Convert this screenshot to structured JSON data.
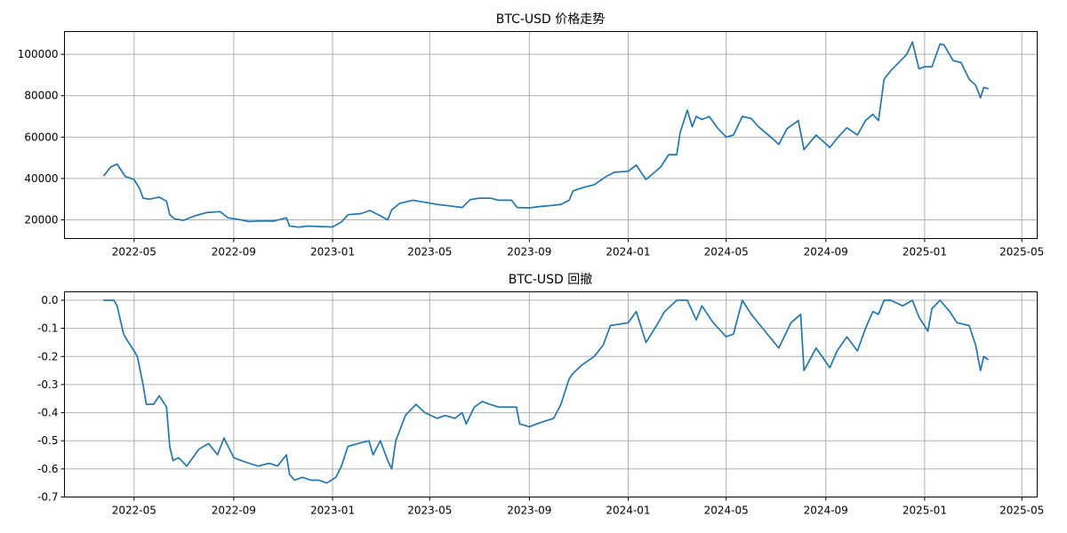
{
  "chart_data": [
    {
      "type": "line",
      "title": "BTC-USD 价格走势",
      "xlabel": "",
      "ylabel": "",
      "ylim": [
        11000,
        111000
      ],
      "yticks": [
        20000,
        40000,
        60000,
        80000,
        100000
      ],
      "ytick_labels": [
        "20000",
        "40000",
        "60000",
        "80000",
        "100000"
      ],
      "xlim": [
        "2022-02-04",
        "2025-05-20"
      ],
      "xticks": [
        "2022-05-01",
        "2022-09-01",
        "2023-01-01",
        "2023-05-01",
        "2023-09-01",
        "2024-01-01",
        "2024-05-01",
        "2024-09-01",
        "2025-01-01",
        "2025-05-01"
      ],
      "xtick_labels": [
        "2022-05",
        "2022-09",
        "2023-01",
        "2023-05",
        "2023-09",
        "2024-01",
        "2024-05",
        "2024-09",
        "2025-01",
        "2025-05"
      ],
      "grid": true,
      "color": "#1f77b4",
      "series": [
        {
          "x": [
            "2022-03-25",
            "2022-04-02",
            "2022-04-10",
            "2022-04-20",
            "2022-05-01",
            "2022-05-08",
            "2022-05-12",
            "2022-05-20",
            "2022-06-01",
            "2022-06-10",
            "2022-06-14",
            "2022-06-20",
            "2022-07-01",
            "2022-07-15",
            "2022-07-29",
            "2022-08-15",
            "2022-08-25",
            "2022-09-10",
            "2022-09-20",
            "2022-10-05",
            "2022-10-20",
            "2022-11-05",
            "2022-11-09",
            "2022-11-20",
            "2022-12-01",
            "2022-12-15",
            "2023-01-01",
            "2023-01-12",
            "2023-01-20",
            "2023-02-05",
            "2023-02-16",
            "2023-03-01",
            "2023-03-10",
            "2023-03-15",
            "2023-03-25",
            "2023-04-10",
            "2023-04-25",
            "2023-05-10",
            "2023-05-25",
            "2023-06-10",
            "2023-06-20",
            "2023-07-01",
            "2023-07-15",
            "2023-07-25",
            "2023-08-10",
            "2023-08-17",
            "2023-09-01",
            "2023-09-15",
            "2023-09-30",
            "2023-10-10",
            "2023-10-20",
            "2023-10-25",
            "2023-11-05",
            "2023-11-20",
            "2023-12-05",
            "2023-12-15",
            "2024-01-01",
            "2024-01-11",
            "2024-01-23",
            "2024-02-01",
            "2024-02-10",
            "2024-02-20",
            "2024-03-01",
            "2024-03-05",
            "2024-03-14",
            "2024-03-20",
            "2024-03-25",
            "2024-04-01",
            "2024-04-10",
            "2024-04-20",
            "2024-05-01",
            "2024-05-10",
            "2024-05-21",
            "2024-06-01",
            "2024-06-10",
            "2024-06-25",
            "2024-07-05",
            "2024-07-15",
            "2024-07-29",
            "2024-08-05",
            "2024-08-20",
            "2024-09-06",
            "2024-09-15",
            "2024-09-27",
            "2024-10-10",
            "2024-10-20",
            "2024-10-29",
            "2024-11-05",
            "2024-11-12",
            "2024-11-20",
            "2024-12-05",
            "2024-12-10",
            "2024-12-17",
            "2024-12-25",
            "2025-01-01",
            "2025-01-10",
            "2025-01-20",
            "2025-01-25",
            "2025-02-05",
            "2025-02-15",
            "2025-02-25",
            "2025-03-05",
            "2025-03-11",
            "2025-03-15",
            "2025-03-20"
          ],
          "values": [
            41500,
            45500,
            47000,
            41000,
            39500,
            35000,
            30500,
            30000,
            31000,
            29000,
            22500,
            20500,
            19800,
            22000,
            23500,
            24000,
            21000,
            20000,
            19200,
            19500,
            19400,
            21000,
            17000,
            16500,
            17000,
            16800,
            16600,
            19000,
            22500,
            23000,
            24500,
            22000,
            20000,
            24800,
            28000,
            29500,
            28500,
            27500,
            26800,
            26000,
            29800,
            30500,
            30500,
            29500,
            29500,
            26000,
            25800,
            26500,
            27000,
            27500,
            29500,
            34000,
            35500,
            37000,
            41000,
            43000,
            43500,
            46500,
            39500,
            42500,
            45500,
            51500,
            51500,
            62000,
            73000,
            65000,
            70000,
            68500,
            70000,
            64500,
            60000,
            61000,
            70000,
            69000,
            65000,
            60000,
            56500,
            64000,
            68000,
            54000,
            61000,
            55000,
            59500,
            64500,
            61000,
            68000,
            71000,
            68000,
            88000,
            92000,
            98000,
            100000,
            106000,
            93000,
            94000,
            94000,
            105000,
            104500,
            97000,
            96000,
            88000,
            85000,
            79000,
            84000,
            83500
          ]
        }
      ]
    },
    {
      "type": "line",
      "title": "BTC-USD 回撤",
      "xlabel": "",
      "ylabel": "",
      "ylim": [
        -0.7,
        0.03
      ],
      "yticks": [
        -0.7,
        -0.6,
        -0.5,
        -0.4,
        -0.3,
        -0.2,
        -0.1,
        0.0
      ],
      "ytick_labels": [
        "-0.7",
        "-0.6",
        "-0.5",
        "-0.4",
        "-0.3",
        "-0.2",
        "-0.1",
        "0.0"
      ],
      "xlim": [
        "2022-02-04",
        "2025-05-20"
      ],
      "xticks": [
        "2022-05-01",
        "2022-09-01",
        "2023-01-01",
        "2023-05-01",
        "2023-09-01",
        "2024-01-01",
        "2024-05-01",
        "2024-09-01",
        "2025-01-01",
        "2025-05-01"
      ],
      "xtick_labels": [
        "2022-05",
        "2022-09",
        "2023-01",
        "2023-05",
        "2023-09",
        "2024-01",
        "2024-05",
        "2024-09",
        "2025-01",
        "2025-05"
      ],
      "grid": true,
      "color": "#1f77b4",
      "series": [
        {
          "x": [
            "2022-03-25",
            "2022-04-02",
            "2022-04-06",
            "2022-04-10",
            "2022-04-18",
            "2022-04-22",
            "2022-05-01",
            "2022-05-05",
            "2022-05-12",
            "2022-05-16",
            "2022-05-25",
            "2022-06-01",
            "2022-06-10",
            "2022-06-14",
            "2022-06-18",
            "2022-06-25",
            "2022-07-05",
            "2022-07-20",
            "2022-08-01",
            "2022-08-12",
            "2022-08-20",
            "2022-09-01",
            "2022-09-10",
            "2022-09-20",
            "2022-10-01",
            "2022-10-15",
            "2022-10-25",
            "2022-11-05",
            "2022-11-09",
            "2022-11-15",
            "2022-11-25",
            "2022-12-05",
            "2022-12-15",
            "2022-12-25",
            "2023-01-05",
            "2023-01-12",
            "2023-01-20",
            "2023-02-01",
            "2023-02-15",
            "2023-02-20",
            "2023-03-01",
            "2023-03-10",
            "2023-03-15",
            "2023-03-20",
            "2023-04-01",
            "2023-04-14",
            "2023-04-25",
            "2023-05-10",
            "2023-05-20",
            "2023-06-01",
            "2023-06-10",
            "2023-06-15",
            "2023-06-25",
            "2023-07-05",
            "2023-07-14",
            "2023-07-25",
            "2023-08-05",
            "2023-08-16",
            "2023-08-20",
            "2023-09-01",
            "2023-09-10",
            "2023-09-20",
            "2023-10-01",
            "2023-10-10",
            "2023-10-20",
            "2023-10-25",
            "2023-11-05",
            "2023-11-20",
            "2023-12-01",
            "2023-12-10",
            "2024-01-01",
            "2024-01-11",
            "2024-01-23",
            "2024-02-05",
            "2024-02-15",
            "2024-03-01",
            "2024-03-14",
            "2024-03-25",
            "2024-04-01",
            "2024-04-15",
            "2024-05-01",
            "2024-05-10",
            "2024-05-21",
            "2024-06-01",
            "2024-06-15",
            "2024-07-05",
            "2024-07-20",
            "2024-08-01",
            "2024-08-05",
            "2024-08-20",
            "2024-09-06",
            "2024-09-15",
            "2024-09-27",
            "2024-10-10",
            "2024-10-20",
            "2024-10-29",
            "2024-11-05",
            "2024-11-12",
            "2024-11-20",
            "2024-12-05",
            "2024-12-17",
            "2024-12-25",
            "2025-01-05",
            "2025-01-10",
            "2025-01-20",
            "2025-02-01",
            "2025-02-10",
            "2025-02-25",
            "2025-03-05",
            "2025-03-11",
            "2025-03-15",
            "2025-03-20"
          ],
          "values": [
            0.0,
            0.0,
            0.0,
            -0.02,
            -0.12,
            -0.14,
            -0.18,
            -0.2,
            -0.3,
            -0.37,
            -0.37,
            -0.34,
            -0.38,
            -0.52,
            -0.57,
            -0.56,
            -0.59,
            -0.53,
            -0.51,
            -0.55,
            -0.49,
            -0.56,
            -0.57,
            -0.58,
            -0.59,
            -0.58,
            -0.59,
            -0.55,
            -0.62,
            -0.64,
            -0.63,
            -0.64,
            -0.64,
            -0.65,
            -0.63,
            -0.59,
            -0.52,
            -0.51,
            -0.5,
            -0.55,
            -0.5,
            -0.57,
            -0.6,
            -0.5,
            -0.41,
            -0.37,
            -0.4,
            -0.42,
            -0.41,
            -0.42,
            -0.4,
            -0.44,
            -0.38,
            -0.36,
            -0.37,
            -0.38,
            -0.38,
            -0.38,
            -0.44,
            -0.45,
            -0.44,
            -0.43,
            -0.42,
            -0.37,
            -0.28,
            -0.26,
            -0.23,
            -0.2,
            -0.16,
            -0.09,
            -0.08,
            -0.04,
            -0.15,
            -0.09,
            -0.04,
            0.0,
            0.0,
            -0.07,
            -0.02,
            -0.08,
            -0.13,
            -0.12,
            0.0,
            -0.05,
            -0.1,
            -0.17,
            -0.08,
            -0.05,
            -0.25,
            -0.17,
            -0.24,
            -0.18,
            -0.13,
            -0.18,
            -0.1,
            -0.04,
            -0.05,
            0.0,
            0.0,
            -0.02,
            0.0,
            -0.06,
            -0.11,
            -0.03,
            0.0,
            -0.04,
            -0.08,
            -0.09,
            -0.16,
            -0.25,
            -0.2,
            -0.21
          ]
        }
      ]
    }
  ]
}
